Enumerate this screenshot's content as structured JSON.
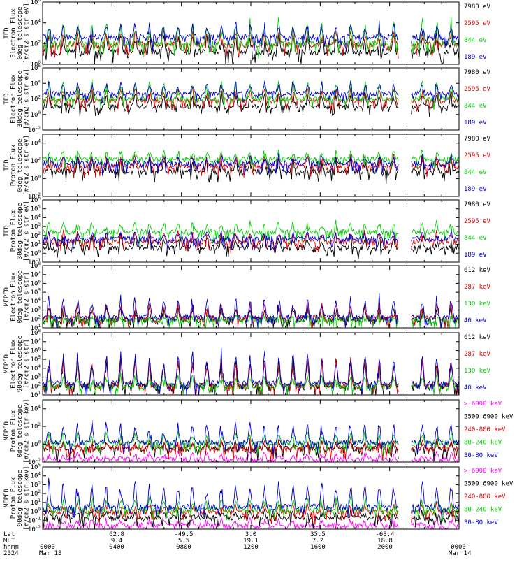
{
  "figure": {
    "footer": {
      "row_labels": [
        "Lat",
        "MLT",
        "hhmm",
        "2024"
      ],
      "lat": [
        "62.8",
        "-49.5",
        "3.0",
        "35.5",
        "-68.4"
      ],
      "mlt": [
        "9.4",
        "5.5",
        "19.1",
        "7.2",
        "18.8"
      ],
      "hhmm": [
        "0000",
        "0400",
        "0800",
        "1200",
        "1600",
        "2000",
        "0000"
      ],
      "dates": [
        "Mar 13",
        "Mar 14"
      ]
    }
  },
  "chart_data": [
    {
      "type": "line",
      "ylabel": [
        "TED",
        "Electron Flux",
        "0deg telescope",
        "[#/cm2-s-str-eV]"
      ],
      "yscale": "log",
      "ylim_exp": [
        0,
        6
      ],
      "ytick_labels": [
        "10^0",
        "10^2",
        "10^4",
        "10^6"
      ],
      "series": [
        {
          "name": "7980 eV",
          "color": "#000000",
          "level": 1.2,
          "spikes": 1.8
        },
        {
          "name": "2595 eV",
          "color": "#dd0000",
          "level": 1.9,
          "spikes": 1.4
        },
        {
          "name": "844 eV",
          "color": "#00cc00",
          "level": 2.0,
          "spikes": 2.3
        },
        {
          "name": "189 eV",
          "color": "#0000cc",
          "level": 2.6,
          "spikes": 1.5
        }
      ]
    },
    {
      "type": "line",
      "ylabel": [
        "TED",
        "Electron Flux",
        "30deg telescope",
        "[#/cm2-s-str-eV]"
      ],
      "yscale": "log",
      "ylim_exp": [
        -2,
        6
      ],
      "ytick_labels": [
        "10^-2",
        "10^0",
        "10^2",
        "10^4",
        "10^6"
      ],
      "series": [
        {
          "name": "7980 eV",
          "color": "#000000",
          "level": 1.0,
          "spikes": 2.0
        },
        {
          "name": "2595 eV",
          "color": "#dd0000",
          "level": 1.8,
          "spikes": 1.7
        },
        {
          "name": "844 eV",
          "color": "#00cc00",
          "level": 2.0,
          "spikes": 2.5
        },
        {
          "name": "189 eV",
          "color": "#0000cc",
          "level": 2.7,
          "spikes": 1.6
        }
      ]
    },
    {
      "type": "line",
      "ylabel": [
        "TED",
        "Proton Flux",
        "0deg telescope",
        "[#/cm2-s-str-eV]"
      ],
      "yscale": "log",
      "ylim_exp": [
        -2,
        5
      ],
      "ytick_labels": [
        "10^-2",
        "10^0",
        "10^2",
        "10^4"
      ],
      "series": [
        {
          "name": "7980 eV",
          "color": "#000000",
          "level": 0.8,
          "spikes": 1.6
        },
        {
          "name": "2595 eV",
          "color": "#dd0000",
          "level": 1.4,
          "spikes": 1.3
        },
        {
          "name": "844 eV",
          "color": "#00cc00",
          "level": 2.2,
          "spikes": 0.9
        },
        {
          "name": "189 eV",
          "color": "#0000cc",
          "level": 1.7,
          "spikes": 0.9
        }
      ]
    },
    {
      "type": "line",
      "ylabel": [
        "TED",
        "Proton Flux",
        "30deg telescope",
        "[#/cm2-s-str-eV]"
      ],
      "yscale": "log",
      "ylim_exp": [
        -1,
        6
      ],
      "ytick_labels": [
        "10^-1",
        "10^0",
        "10^1",
        "10^2",
        "10^3",
        "10^4",
        "10^5",
        "10^6"
      ],
      "series": [
        {
          "name": "7980 eV",
          "color": "#000000",
          "level": 0.6,
          "spikes": 1.4
        },
        {
          "name": "2595 eV",
          "color": "#dd0000",
          "level": 1.3,
          "spikes": 1.2
        },
        {
          "name": "844 eV",
          "color": "#00cc00",
          "level": 2.4,
          "spikes": 1.2
        },
        {
          "name": "189 eV",
          "color": "#0000cc",
          "level": 1.6,
          "spikes": 0.8
        }
      ]
    },
    {
      "type": "line",
      "ylabel": [
        "MEPED",
        "Electron Flux",
        "0deg telescope",
        "[#/cm2-s-str]"
      ],
      "yscale": "log",
      "ylim_exp": [
        1,
        8
      ],
      "ytick_labels": [
        "10^1",
        "10^2",
        "10^3",
        "10^4",
        "10^5",
        "10^6",
        "10^7",
        "10^8"
      ],
      "series": [
        {
          "name": "612 keV",
          "color": "#000000",
          "level": 1.9,
          "spikes": 1.5
        },
        {
          "name": "287 keV",
          "color": "#dd0000",
          "level": 2.1,
          "spikes": 1.6
        },
        {
          "name": "130 keV",
          "color": "#00cc00",
          "level": 1.9,
          "spikes": 0.4
        },
        {
          "name": "40 keV",
          "color": "#0000cc",
          "level": 2.2,
          "spikes": 2.5
        }
      ]
    },
    {
      "type": "line",
      "ylabel": [
        "MEPED",
        "Electron Flux",
        "90deg telescope",
        "[#/cm2-s-str]"
      ],
      "yscale": "log",
      "ylim_exp": [
        1,
        8
      ],
      "ytick_labels": [
        "10^1",
        "10^2",
        "10^3",
        "10^4",
        "10^5",
        "10^6",
        "10^7",
        "10^8"
      ],
      "series": [
        {
          "name": "612 keV",
          "color": "#000000",
          "level": 2.0,
          "spikes": 3.5
        },
        {
          "name": "287 keV",
          "color": "#dd0000",
          "level": 2.1,
          "spikes": 3.3
        },
        {
          "name": "130 keV",
          "color": "#00cc00",
          "level": 2.0,
          "spikes": 1.2
        },
        {
          "name": "40 keV",
          "color": "#0000cc",
          "level": 2.3,
          "spikes": 3.7
        }
      ]
    },
    {
      "type": "line",
      "ylabel": [
        "MEPED",
        "Proton Flux",
        "0deg telescope",
        "[#/cm2-s-str-keV]"
      ],
      "yscale": "log",
      "ylim_exp": [
        -2,
        5
      ],
      "ytick_labels": [
        "10^-2",
        "10^0",
        "10^2",
        "10^4"
      ],
      "series": [
        {
          "name": "> 6900 keV",
          "color": "#ff00ff",
          "level": -1.7,
          "spikes": 0.8
        },
        {
          "name": "2500-6900 keV",
          "color": "#000000",
          "level": -0.5,
          "spikes": 0.8
        },
        {
          "name": "240-800 keV",
          "color": "#dd0000",
          "level": -0.5,
          "spikes": 1.0
        },
        {
          "name": "80-240 keV",
          "color": "#00cc00",
          "level": 0.1,
          "spikes": 1.2
        },
        {
          "name": "30-80 keV",
          "color": "#0000cc",
          "level": 0.2,
          "spikes": 2.5
        }
      ]
    },
    {
      "type": "line",
      "ylabel": [
        "MEPED",
        "Proton Flux",
        "90deg telescope",
        "[#/cm2-s-str-keV]"
      ],
      "yscale": "log",
      "ylim_exp": [
        -2,
        5
      ],
      "ytick_labels": [
        "10^-2",
        "10^-1",
        "10^0",
        "10^1",
        "10^2",
        "10^3",
        "10^4",
        "10^5"
      ],
      "series": [
        {
          "name": "> 6900 keV",
          "color": "#ff00ff",
          "level": -1.6,
          "spikes": 0.8
        },
        {
          "name": "2500-6900 keV",
          "color": "#000000",
          "level": -0.7,
          "spikes": 0.8
        },
        {
          "name": "240-800 keV",
          "color": "#dd0000",
          "level": -0.1,
          "spikes": 1.0
        },
        {
          "name": "80-240 keV",
          "color": "#00cc00",
          "level": 0.2,
          "spikes": 1.3
        },
        {
          "name": "30-80 keV",
          "color": "#0000cc",
          "level": 0.5,
          "spikes": 3.0
        }
      ]
    }
  ]
}
